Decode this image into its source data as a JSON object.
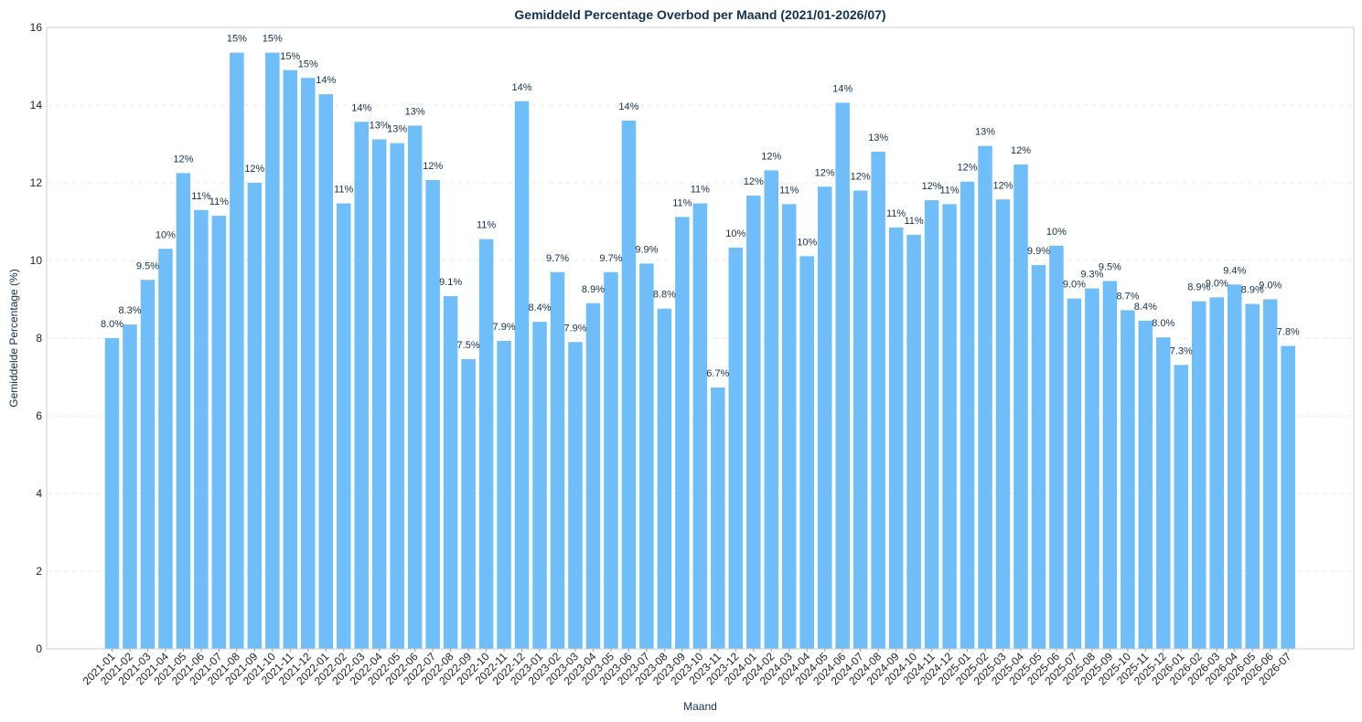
{
  "colors": {
    "bar": "#6fbdf9",
    "title": "#14304f",
    "label": "#14304f",
    "frame": "#cccccc",
    "grid": "#e8e8e8",
    "tick_text": "#222222"
  },
  "chart_data": {
    "type": "bar",
    "title": "Gemiddeld Percentage Overbod per Maand (2021/01-2026/07)",
    "xlabel": "Maand",
    "ylabel": "Gemiddelde Percentage (%)",
    "ylim": [
      0,
      16
    ],
    "yticks": [
      0,
      2,
      4,
      6,
      8,
      10,
      12,
      14,
      16
    ],
    "grid": "y-dashed",
    "categories": [
      "2021-01",
      "2021-02",
      "2021-03",
      "2021-04",
      "2021-05",
      "2021-06",
      "2021-07",
      "2021-08",
      "2021-09",
      "2021-10",
      "2021-11",
      "2021-12",
      "2022-01",
      "2022-02",
      "2022-03",
      "2022-04",
      "2022-05",
      "2022-06",
      "2022-07",
      "2022-08",
      "2022-09",
      "2022-10",
      "2022-11",
      "2022-12",
      "2023-01",
      "2023-02",
      "2023-03",
      "2023-04",
      "2023-05",
      "2023-06",
      "2023-07",
      "2023-08",
      "2023-09",
      "2023-10",
      "2023-11",
      "2023-12",
      "2024-01",
      "2024-02",
      "2024-03",
      "2024-04",
      "2024-05",
      "2024-06",
      "2024-07",
      "2024-08",
      "2024-09",
      "2024-10",
      "2024-11",
      "2024-12",
      "2025-01",
      "2025-02",
      "2025-03",
      "2025-04",
      "2025-05",
      "2025-06",
      "2025-07",
      "2025-08",
      "2025-09",
      "2025-10",
      "2025-11",
      "2025-12",
      "2026-01",
      "2026-02",
      "2026-03",
      "2026-04",
      "2026-05",
      "2026-06",
      "2026-07"
    ],
    "values": [
      8.0,
      8.35,
      9.5,
      10.3,
      12.25,
      11.3,
      11.15,
      15.35,
      12.0,
      15.35,
      14.9,
      14.7,
      14.28,
      11.47,
      13.57,
      13.12,
      13.02,
      13.47,
      12.07,
      9.08,
      7.46,
      10.55,
      7.93,
      14.1,
      8.42,
      9.7,
      7.9,
      8.9,
      9.7,
      13.6,
      9.92,
      8.76,
      11.12,
      11.47,
      6.73,
      10.33,
      11.67,
      12.32,
      11.45,
      10.11,
      11.9,
      14.06,
      11.8,
      12.8,
      10.85,
      10.66,
      11.55,
      11.45,
      12.03,
      12.95,
      11.57,
      12.47,
      9.88,
      10.38,
      9.02,
      9.28,
      9.47,
      8.72,
      8.45,
      8.02,
      7.31,
      8.95,
      9.05,
      9.38,
      8.88,
      9.0,
      7.8
    ],
    "data_labels": [
      "8.0%",
      "8.3%",
      "9.5%",
      "10%",
      "12%",
      "11%",
      "11%",
      "15%",
      "12%",
      "15%",
      "15%",
      "15%",
      "14%",
      "11%",
      "14%",
      "13%",
      "13%",
      "13%",
      "12%",
      "9.1%",
      "7.5%",
      "11%",
      "7.9%",
      "14%",
      "8.4%",
      "9.7%",
      "7.9%",
      "8.9%",
      "9.7%",
      "14%",
      "9.9%",
      "8.8%",
      "11%",
      "11%",
      "6.7%",
      "10%",
      "12%",
      "12%",
      "11%",
      "10%",
      "12%",
      "14%",
      "12%",
      "13%",
      "11%",
      "11%",
      "12%",
      "11%",
      "12%",
      "13%",
      "12%",
      "12%",
      "9.9%",
      "10%",
      "9.0%",
      "9.3%",
      "9.5%",
      "8.7%",
      "8.4%",
      "8.0%",
      "7.3%",
      "8.9%",
      "9.0%",
      "9.4%",
      "8.9%",
      "9.0%",
      "7.8%"
    ]
  }
}
